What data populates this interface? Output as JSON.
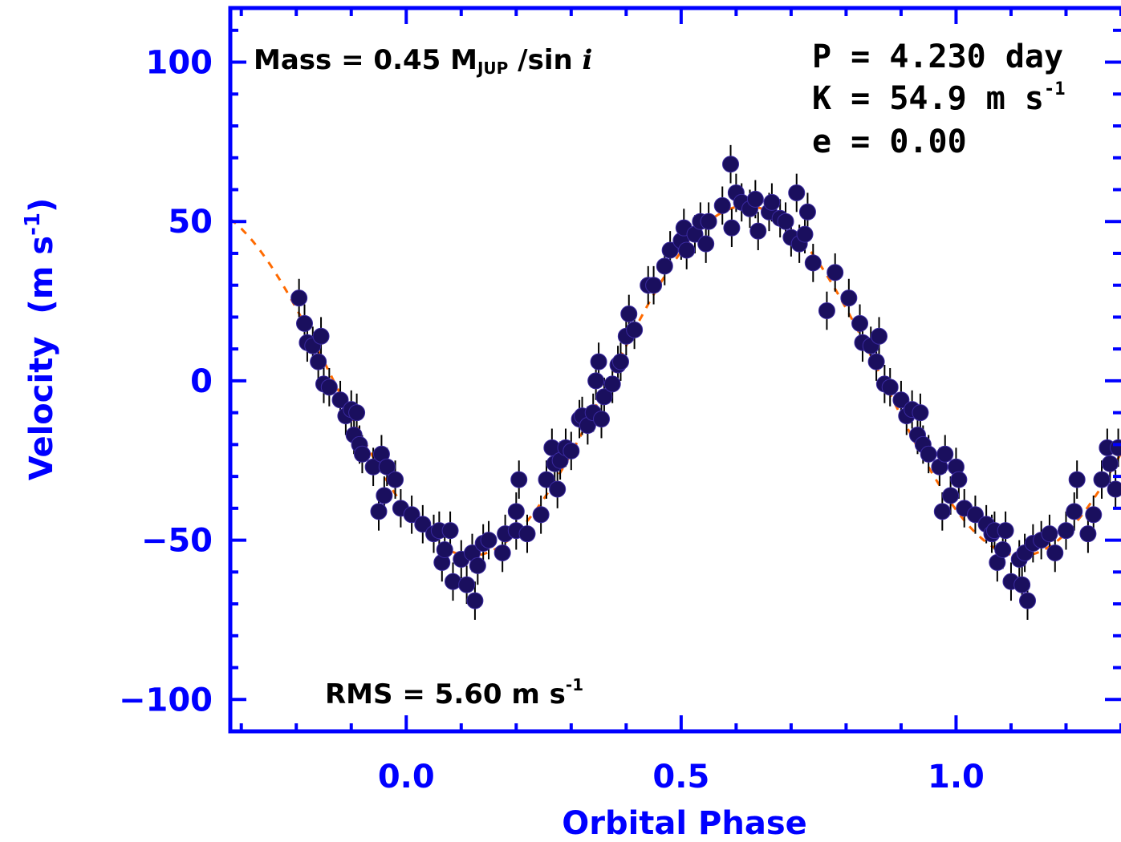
{
  "chart_data": {
    "type": "scatter",
    "title": "",
    "xlabel": "Orbital Phase",
    "ylabel": "Velocity",
    "ylabel_unit_prefix": "(m s",
    "ylabel_unit_exp": "-1",
    "ylabel_unit_suffix": ")",
    "xlim": [
      -0.32,
      1.3
    ],
    "ylim": [
      -110,
      117
    ],
    "x_ticks": [
      {
        "value": 0.0,
        "label": "0.0"
      },
      {
        "value": 0.5,
        "label": "0.5"
      },
      {
        "value": 1.0,
        "label": "1.0"
      }
    ],
    "y_ticks": [
      {
        "value": 100,
        "label": "100"
      },
      {
        "value": 50,
        "label": "50"
      },
      {
        "value": 0,
        "label": "0"
      },
      {
        "value": -50,
        "label": "−50"
      },
      {
        "value": -100,
        "label": "−100"
      }
    ],
    "annotations": {
      "mass_prefix": "Mass = 0.45 M",
      "mass_sub": "JUP",
      "mass_suffix": " /sin ",
      "mass_italic": "i",
      "period": "P = 4.230 day",
      "k_prefix": "K = 54.9 m s",
      "k_exp": "-1",
      "ecc": "e = 0.00",
      "rms_prefix": "RMS = 5.60 m s",
      "rms_exp": "-1"
    },
    "fit": {
      "type": "sine",
      "K": 54.9,
      "phase_offset": 0.368,
      "period_phase": 1.0,
      "style": "dashed",
      "color": "#ff6a00"
    },
    "marker_color": "#1a0f5e",
    "axis_color": "#0000ff",
    "error_bar": 6,
    "series": [
      {
        "points": [
          [
            -0.195,
            26
          ],
          [
            -0.185,
            18
          ],
          [
            -0.18,
            12
          ],
          [
            -0.17,
            11
          ],
          [
            -0.16,
            6
          ],
          [
            -0.155,
            14
          ],
          [
            -0.15,
            -1
          ],
          [
            -0.14,
            -2
          ],
          [
            -0.12,
            -6
          ],
          [
            -0.11,
            -11
          ],
          [
            -0.1,
            -9
          ],
          [
            -0.095,
            -17
          ],
          [
            -0.09,
            -10
          ],
          [
            -0.085,
            -20
          ],
          [
            -0.08,
            -23
          ],
          [
            -0.06,
            -27
          ],
          [
            -0.05,
            -41
          ],
          [
            -0.045,
            -23
          ],
          [
            -0.04,
            -36
          ],
          [
            -0.035,
            -27
          ],
          [
            -0.02,
            -31
          ],
          [
            -0.01,
            -40
          ],
          [
            0.01,
            -42
          ],
          [
            0.03,
            -45
          ],
          [
            0.05,
            -48
          ],
          [
            0.06,
            -47
          ],
          [
            0.065,
            -57
          ],
          [
            0.07,
            -53
          ],
          [
            0.08,
            -47
          ],
          [
            0.085,
            -63
          ],
          [
            0.1,
            -56
          ],
          [
            0.11,
            -64
          ],
          [
            0.12,
            -54
          ],
          [
            0.125,
            -69
          ],
          [
            0.13,
            -58
          ],
          [
            0.14,
            -51
          ],
          [
            0.15,
            -50
          ],
          [
            0.175,
            -54
          ],
          [
            0.18,
            -48
          ],
          [
            0.2,
            -47
          ],
          [
            0.2,
            -41
          ],
          [
            0.205,
            -31
          ],
          [
            0.22,
            -48
          ],
          [
            0.245,
            -42
          ],
          [
            0.255,
            -31
          ],
          [
            0.265,
            -21
          ],
          [
            0.27,
            -26
          ],
          [
            0.275,
            -34
          ],
          [
            0.28,
            -25
          ],
          [
            0.29,
            -21
          ],
          [
            0.3,
            -22
          ],
          [
            0.315,
            -12
          ],
          [
            0.32,
            -11
          ],
          [
            0.33,
            -14
          ],
          [
            0.34,
            -10
          ],
          [
            0.345,
            0
          ],
          [
            0.35,
            6
          ],
          [
            0.355,
            -12
          ],
          [
            0.36,
            -5
          ],
          [
            0.375,
            -1
          ],
          [
            0.385,
            5
          ],
          [
            0.39,
            6
          ],
          [
            0.4,
            14
          ],
          [
            0.405,
            21
          ],
          [
            0.415,
            16
          ],
          [
            0.44,
            30
          ],
          [
            0.45,
            30
          ],
          [
            0.47,
            36
          ],
          [
            0.48,
            41
          ],
          [
            0.5,
            44
          ],
          [
            0.505,
            48
          ],
          [
            0.51,
            41
          ],
          [
            0.525,
            46
          ],
          [
            0.535,
            50
          ],
          [
            0.545,
            43
          ],
          [
            0.55,
            50
          ],
          [
            0.575,
            55
          ],
          [
            0.59,
            68
          ],
          [
            0.592,
            48
          ],
          [
            0.6,
            59
          ],
          [
            0.61,
            56
          ],
          [
            0.625,
            54
          ],
          [
            0.635,
            57
          ],
          [
            0.64,
            47
          ],
          [
            0.66,
            53
          ],
          [
            0.665,
            56
          ],
          [
            0.68,
            51
          ],
          [
            0.69,
            50
          ],
          [
            0.7,
            45
          ],
          [
            0.71,
            59
          ],
          [
            0.715,
            43
          ],
          [
            0.725,
            46
          ],
          [
            0.73,
            53
          ],
          [
            0.74,
            37
          ],
          [
            0.765,
            22
          ],
          [
            0.78,
            34
          ],
          [
            0.805,
            26
          ],
          [
            0.825,
            18
          ],
          [
            0.83,
            12
          ],
          [
            0.845,
            11
          ],
          [
            0.855,
            6
          ],
          [
            0.86,
            14
          ],
          [
            0.87,
            -1
          ],
          [
            0.88,
            -2
          ],
          [
            0.9,
            -6
          ],
          [
            0.91,
            -11
          ],
          [
            0.92,
            -9
          ],
          [
            0.93,
            -17
          ],
          [
            0.935,
            -10
          ],
          [
            0.94,
            -20
          ],
          [
            0.95,
            -23
          ],
          [
            0.97,
            -27
          ],
          [
            0.975,
            -41
          ],
          [
            0.98,
            -23
          ],
          [
            0.99,
            -36
          ],
          [
            1.0,
            -27
          ],
          [
            1.005,
            -31
          ],
          [
            1.015,
            -40
          ],
          [
            1.035,
            -42
          ],
          [
            1.055,
            -45
          ],
          [
            1.065,
            -48
          ],
          [
            1.07,
            -47
          ],
          [
            1.075,
            -57
          ],
          [
            1.085,
            -53
          ],
          [
            1.09,
            -47
          ],
          [
            1.1,
            -63
          ],
          [
            1.115,
            -56
          ],
          [
            1.12,
            -64
          ],
          [
            1.125,
            -54
          ],
          [
            1.13,
            -69
          ],
          [
            1.14,
            -51
          ],
          [
            1.155,
            -50
          ],
          [
            1.17,
            -48
          ],
          [
            1.18,
            -54
          ],
          [
            1.2,
            -47
          ],
          [
            1.215,
            -41
          ],
          [
            1.22,
            -31
          ],
          [
            1.24,
            -48
          ],
          [
            1.25,
            -42
          ],
          [
            1.265,
            -31
          ],
          [
            1.275,
            -21
          ],
          [
            1.28,
            -26
          ],
          [
            1.29,
            -34
          ],
          [
            1.295,
            -21
          ]
        ]
      }
    ]
  }
}
